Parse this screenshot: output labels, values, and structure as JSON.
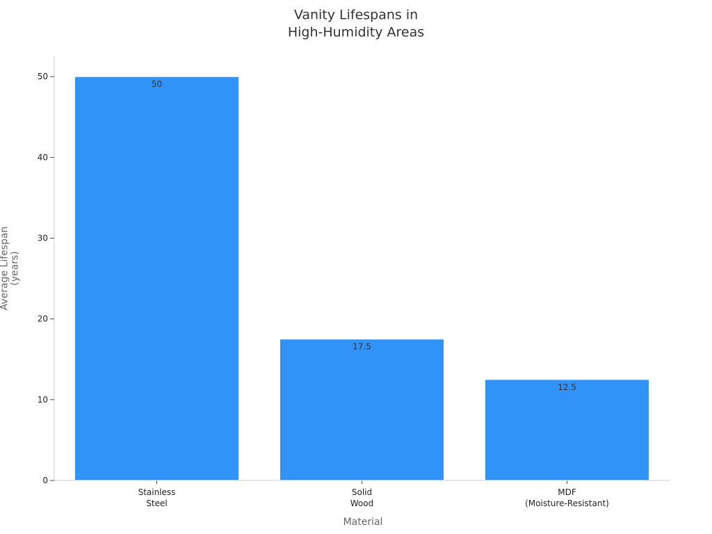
{
  "chart_data": {
    "type": "bar",
    "title": "Vanity Lifespans in\nHigh-Humidity Areas",
    "x_label": "Material",
    "y_label": "Average Lifespan\n(years)",
    "categories": [
      "Stainless\nSteel",
      "Solid\nWood",
      "MDF\n(Moisture-Resistant)"
    ],
    "values": [
      50,
      17.5,
      12.5
    ],
    "color": "#3192f7",
    "ylim": [
      0,
      52.6
    ],
    "yticks": [
      0,
      10,
      20,
      30,
      40,
      50
    ],
    "grid": false
  }
}
